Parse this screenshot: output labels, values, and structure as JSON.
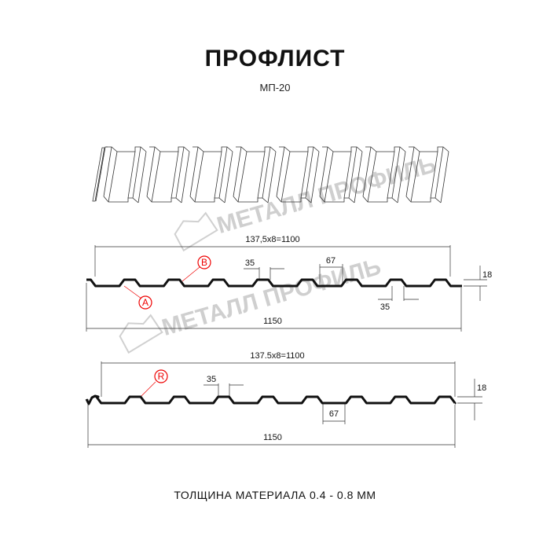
{
  "header": {
    "title": "ПРОФЛИСТ",
    "subtitle": "МП-20"
  },
  "watermark": "МЕТАЛЛ ПРОФИЛЬ",
  "profile_1": {
    "pitch_dim": "137,5x8=1100",
    "width_dim": "1150",
    "top_dim": "35",
    "bottom_dim": "35",
    "trough_dim": "67",
    "height_dim": "18",
    "label_b": "B",
    "label_a": "A"
  },
  "profile_2": {
    "pitch_dim": "137.5x8=1100",
    "width_dim": "1150",
    "top_dim": "35",
    "trough_dim": "67",
    "height_dim": "18",
    "label_r": "R"
  },
  "footer": {
    "thickness": "ТОЛЩИНА МАТЕРИАЛА 0.4 - 0.8 ММ"
  },
  "colors": {
    "profile": "#111111",
    "callout": "#e00000",
    "watermark": "#cfcfcf"
  }
}
